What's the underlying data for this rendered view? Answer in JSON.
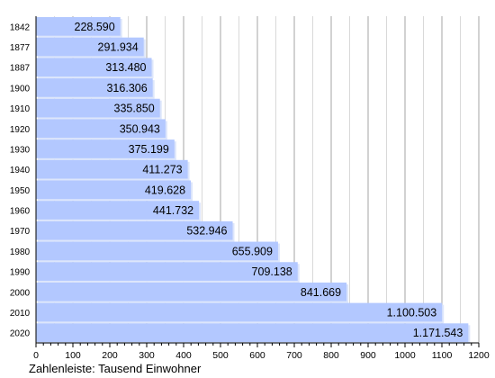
{
  "chart_data": {
    "type": "bar",
    "orientation": "horizontal",
    "categories": [
      "1842",
      "1877",
      "1887",
      "1900",
      "1910",
      "1920",
      "1930",
      "1940",
      "1950",
      "1960",
      "1970",
      "1980",
      "1990",
      "2000",
      "2010",
      "2020"
    ],
    "values": [
      228.59,
      291.934,
      313.48,
      316.306,
      335.85,
      350.943,
      375.199,
      411.273,
      419.628,
      441.732,
      532.946,
      655.909,
      709.138,
      841.669,
      1100.503,
      1171.543
    ],
    "data_labels": [
      "228.590",
      "291.934",
      "313.480",
      "316.306",
      "335.850",
      "350.943",
      "375.199",
      "411.273",
      "419.628",
      "441.732",
      "532.946",
      "655.909",
      "709.138",
      "841.669",
      "1.100.503",
      "1.171.543"
    ],
    "x_ticks": [
      0,
      100,
      200,
      300,
      400,
      500,
      600,
      700,
      800,
      900,
      1000,
      1100,
      1200
    ],
    "xlim": [
      0,
      1200
    ],
    "grid": "vertical",
    "bar_color": "#b3c8ff",
    "xlabel": "Zahlenleiste: Tausend Einwohner"
  }
}
